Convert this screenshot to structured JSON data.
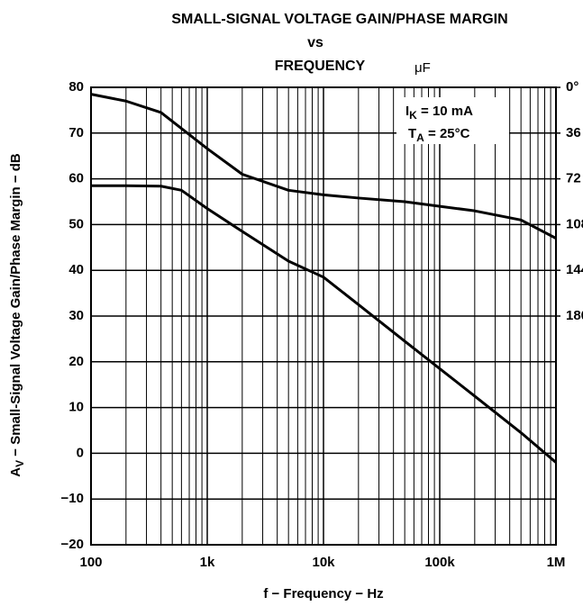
{
  "chart_data": {
    "type": "line",
    "title": [
      "SMALL-SIGNAL VOLTAGE GAIN/PHASE MARGIN",
      "vs",
      "FREQUENCY"
    ],
    "annotations": [
      "μF"
    ],
    "conditions": [
      {
        "main": "I",
        "sub": "K",
        "rest": " = 10 mA"
      },
      {
        "main": "T",
        "sub": "A",
        "rest": " = 25°C"
      }
    ],
    "xlabel": "f − Frequency − Hz",
    "ylabel": {
      "main": "A",
      "sub": "V",
      "rest": " − Small-Signal Voltage Gain/Phase Margin − dB"
    },
    "log_x": true,
    "xlim": [
      100,
      1000000
    ],
    "xticks": [
      100,
      {
        "value": 1000,
        "label": "1k"
      },
      {
        "value": 10000,
        "label": "10k"
      },
      {
        "value": 100000,
        "label": "100k"
      },
      {
        "value": 1000000,
        "label": "1M"
      }
    ],
    "xgrid_minor": [
      200,
      300,
      400,
      500,
      600,
      700,
      800,
      900,
      2000,
      3000,
      4000,
      5000,
      6000,
      7000,
      8000,
      9000,
      20000,
      30000,
      40000,
      50000,
      60000,
      70000,
      80000,
      90000,
      200000,
      300000,
      400000,
      500000,
      600000,
      700000,
      800000,
      900000
    ],
    "ylim": [
      -20,
      80
    ],
    "yticks": [
      {
        "value": -20,
        "label": "−20"
      },
      {
        "value": -10,
        "label": "−10"
      },
      0,
      10,
      20,
      30,
      40,
      50,
      60,
      70,
      80
    ],
    "y2lim": [
      360,
      0
    ],
    "y2ticks": [
      {
        "value": 0,
        "label": "0°"
      },
      36,
      72,
      108,
      144,
      180
    ],
    "grid": true,
    "x": [
      100,
      200,
      400,
      600,
      1000,
      2000,
      5000,
      10000,
      20000,
      50000,
      100000,
      200000,
      500000,
      1000000
    ],
    "series": [
      {
        "color": "#000000",
        "values": [
          58.5,
          58.5,
          58.4,
          57.5,
          53.5,
          48.5,
          42,
          38.5,
          32.5,
          24.5,
          18.5,
          12.5,
          4.5,
          -2
        ]
      },
      {
        "color": "#000000",
        "values": [
          78.5,
          77,
          74.5,
          71,
          66.6,
          61,
          57.5,
          56.5,
          55.8,
          55,
          54,
          53,
          51,
          47
        ]
      }
    ]
  }
}
